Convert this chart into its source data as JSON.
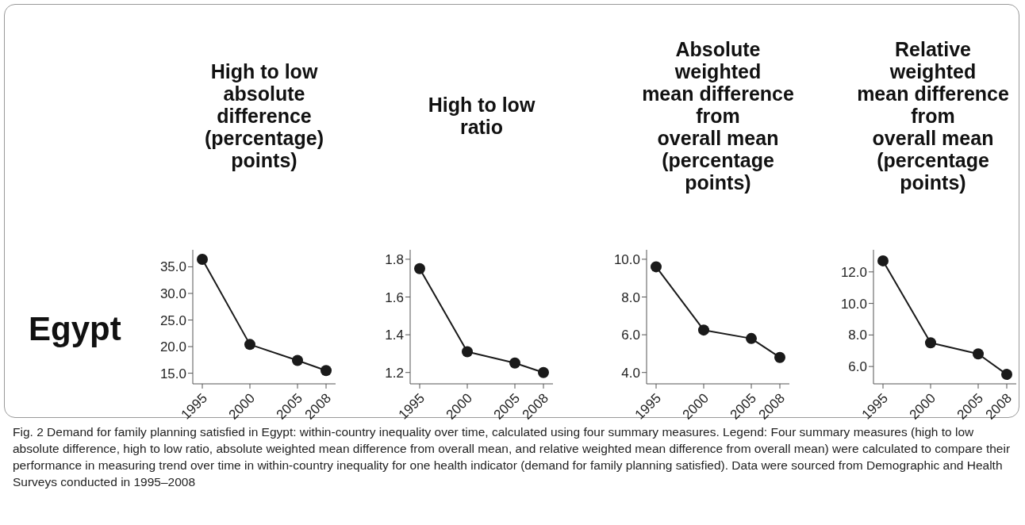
{
  "chart_data": [
    {
      "type": "line",
      "title": "High to low\nabsolute\ndifference\n(percentage)\npoints)",
      "ylabel": "Egypt",
      "annotations": [
        "Fig. 2 Demand for family planning satisfied in Egypt: within-country inequality over time, calculated using four summary measures. Legend: Four summary measures (high to low absolute difference, high to low ratio, absolute weighted mean difference from overall mean, and relative weighted mean difference from overall mean) were calculated to compare their performance in measuring trend over time in within-country inequality for one health indicator (demand for family planning satisfied). Data were sourced from Demographic and Health Surveys conducted in 1995–2008"
      ],
      "x": [
        1995,
        2000,
        2005,
        2008
      ],
      "values": [
        36.4,
        20.4,
        17.4,
        15.5
      ],
      "color": "#1a1a1a",
      "marker": "circle",
      "xlim": [
        1994,
        2009
      ],
      "xticks": [
        1995,
        2000,
        2005,
        2008
      ],
      "ylim": [
        13,
        38.2
      ],
      "yticks": [
        {
          "value": 15,
          "label": "15.0"
        },
        {
          "value": 20,
          "label": "20.0"
        },
        {
          "value": 25,
          "label": "25.0"
        },
        {
          "value": 30,
          "label": "30.0"
        },
        {
          "value": 35,
          "label": "35.0"
        }
      ]
    },
    {
      "type": "line",
      "title": "High to low\nratio",
      "x": [
        1995,
        2000,
        2005,
        2008
      ],
      "values": [
        1.75,
        1.31,
        1.25,
        1.2
      ],
      "color": "#1a1a1a",
      "marker": "circle",
      "xlim": [
        1994,
        2009
      ],
      "xticks": [
        1995,
        2000,
        2005,
        2008
      ],
      "ylim": [
        1.14,
        1.85
      ],
      "yticks": [
        1.2,
        1.4,
        1.6,
        1.8
      ]
    },
    {
      "type": "line",
      "title": "Absolute\nweighted\nmean difference\nfrom\noverall mean\n(percentage\npoints)",
      "x": [
        1995,
        2000,
        2005,
        2008
      ],
      "values": [
        9.6,
        6.25,
        5.8,
        4.8
      ],
      "color": "#1a1a1a",
      "marker": "circle",
      "xlim": [
        1994,
        2009
      ],
      "xticks": [
        1995,
        2000,
        2005,
        2008
      ],
      "ylim": [
        3.4,
        10.5
      ],
      "yticks": [
        {
          "value": 4,
          "label": "4.0"
        },
        {
          "value": 6,
          "label": "6.0"
        },
        {
          "value": 8,
          "label": "8.0"
        },
        {
          "value": 10,
          "label": "10.0"
        }
      ]
    },
    {
      "type": "line",
      "title": "Relative\nweighted\nmean difference\nfrom\noverall mean\n(percentage\npoints)",
      "x": [
        1995,
        2000,
        2005,
        2008
      ],
      "values": [
        12.7,
        7.5,
        6.8,
        5.5
      ],
      "color": "#1a1a1a",
      "marker": "circle",
      "xlim": [
        1994,
        2009
      ],
      "xticks": [
        1995,
        2000,
        2005,
        2008
      ],
      "ylim": [
        4.9,
        13.4
      ],
      "yticks": [
        {
          "value": 6,
          "label": "6.0"
        },
        {
          "value": 8,
          "label": "8.0"
        },
        {
          "value": 10,
          "label": "10.0"
        },
        {
          "value": 12,
          "label": "12.0"
        }
      ]
    }
  ]
}
